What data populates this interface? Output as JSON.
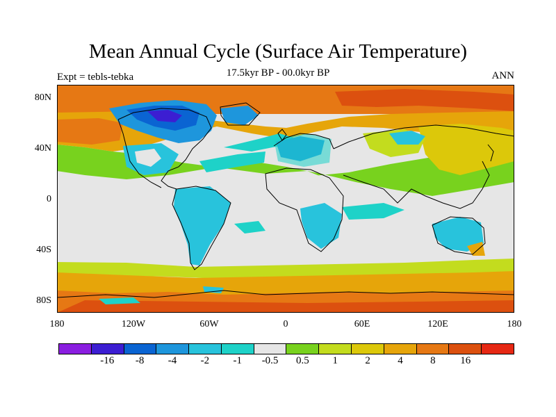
{
  "title": "Mean Annual Cycle (Surface Air Temperature)",
  "subtitle_left": "Expt = tebls-tebka",
  "subtitle_center": "17.5kyr BP - 00.0kyr BP",
  "subtitle_right": "ANN",
  "y_ticks": [
    "80N",
    "40N",
    "0",
    "40S",
    "80S"
  ],
  "x_ticks": [
    "180",
    "120W",
    "60W",
    "0",
    "60E",
    "120E",
    "180"
  ],
  "colorbar": {
    "colors": [
      "#8a1ee0",
      "#3c1ed2",
      "#0a64d2",
      "#1e96dc",
      "#28c3dc",
      "#1ed2c8",
      "#e6e6e6",
      "#78d21e",
      "#c3dc1e",
      "#dcc80a",
      "#e6a50a",
      "#e67814",
      "#dc500f",
      "#e62814"
    ],
    "labels": [
      "-16",
      "-8",
      "-4",
      "-2",
      "-1",
      "-0.5",
      "0.5",
      "1",
      "2",
      "4",
      "8",
      "16"
    ]
  },
  "map_colors": {
    "neutral": "#e6e6e6",
    "warm1": "#78d21e",
    "warm2": "#c3dc1e",
    "warm3": "#dcc80a",
    "warm4": "#e6a50a",
    "warm5": "#e67814",
    "warm6": "#dc500f",
    "cool1": "#1ed2c8",
    "cool2": "#28c3dc",
    "cool3": "#1e96dc",
    "cool4": "#0a64d2",
    "cool5": "#3c1ed2"
  }
}
